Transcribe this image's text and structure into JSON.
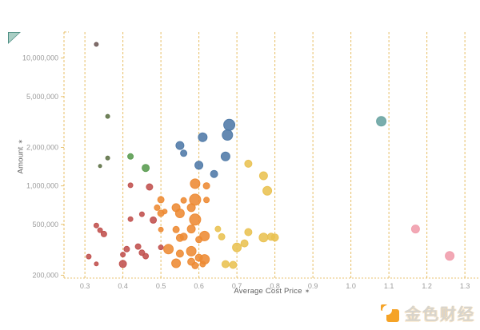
{
  "axes": {
    "x": {
      "label": "Average Cost Price",
      "icon": "✶"
    },
    "y": {
      "label": "Amount",
      "icon": "✶"
    }
  },
  "watermark": {
    "text": "金色财经",
    "brand_color": "#f5a326"
  },
  "colors": {
    "gridline": "#e3b54e",
    "tick_text": "#9b9b9b",
    "corner_marker": "#a9cec4"
  },
  "chart_data": {
    "type": "scatter",
    "title": "",
    "xlabel": "Average Cost Price",
    "ylabel": "Amount",
    "y_scale": "log",
    "grid": "vertical-dashed",
    "legend": "none",
    "xlim": [
      0.245,
      1.325
    ],
    "ylim": [
      190000,
      16000000
    ],
    "x_ticks": [
      "0.3",
      "0.4",
      "0.5",
      "0.6",
      "0.7",
      "0.8",
      "0.9",
      "1.0",
      "1.1",
      "1.2",
      "1.3"
    ],
    "y_ticks": [
      {
        "v": 10000000,
        "label": "10,000,000"
      },
      {
        "v": 5000000,
        "label": "5,000,000"
      },
      {
        "v": 2000000,
        "label": "2,000,000"
      },
      {
        "v": 1000000,
        "label": "1,000,000"
      },
      {
        "v": 500000,
        "label": "500,000"
      },
      {
        "v": 200000,
        "label": "200,000"
      }
    ],
    "point_format": [
      "avg_cost_price",
      "amount",
      "radius_px"
    ],
    "series": [
      {
        "name": "dark-maroon",
        "color": "#6e5a57",
        "points": [
          [
            0.33,
            12800000,
            2.5
          ]
        ]
      },
      {
        "name": "dark-olive",
        "color": "#5d7145",
        "points": [
          [
            0.36,
            3500000,
            2.5
          ],
          [
            0.36,
            1650000,
            2.5
          ],
          [
            0.34,
            1430000,
            2
          ]
        ]
      },
      {
        "name": "green",
        "color": "#589b4f",
        "points": [
          [
            0.42,
            1700000,
            3.5
          ],
          [
            0.46,
            1380000,
            4.5
          ]
        ]
      },
      {
        "name": "red",
        "color": "#c0504d",
        "points": [
          [
            0.42,
            1010000,
            3
          ],
          [
            0.47,
            980000,
            4
          ],
          [
            0.45,
            600000,
            3
          ],
          [
            0.42,
            550000,
            3
          ],
          [
            0.48,
            540000,
            4
          ],
          [
            0.33,
            490000,
            3
          ],
          [
            0.34,
            450000,
            3
          ],
          [
            0.35,
            420000,
            3.5
          ],
          [
            0.31,
            280000,
            3
          ],
          [
            0.33,
            245000,
            2.5
          ],
          [
            0.41,
            320000,
            3.5
          ],
          [
            0.4,
            290000,
            3
          ],
          [
            0.4,
            245000,
            4.5
          ],
          [
            0.44,
            335000,
            3.5
          ],
          [
            0.45,
            300000,
            3.5
          ],
          [
            0.46,
            282000,
            3.5
          ],
          [
            0.5,
            330000,
            3
          ]
        ]
      },
      {
        "name": "orange",
        "color": "#ed8a33",
        "points": [
          [
            0.59,
            1040000,
            6
          ],
          [
            0.62,
            1000000,
            4
          ],
          [
            0.59,
            780000,
            7
          ],
          [
            0.62,
            775000,
            3.5
          ],
          [
            0.56,
            770000,
            3.5
          ],
          [
            0.54,
            675000,
            5
          ],
          [
            0.58,
            675000,
            5
          ],
          [
            0.51,
            630000,
            3
          ],
          [
            0.55,
            610000,
            5.5
          ],
          [
            0.5,
            780000,
            4
          ],
          [
            0.49,
            675000,
            3.5
          ],
          [
            0.5,
            610000,
            4
          ],
          [
            0.59,
            545000,
            7
          ],
          [
            0.58,
            460000,
            5
          ],
          [
            0.54,
            455000,
            4
          ],
          [
            0.56,
            400000,
            4.5
          ],
          [
            0.6,
            380000,
            4
          ],
          [
            0.615,
            405000,
            6
          ],
          [
            0.5,
            455000,
            3
          ],
          [
            0.52,
            320000,
            6
          ],
          [
            0.55,
            295000,
            4.5
          ],
          [
            0.58,
            308000,
            6
          ],
          [
            0.6,
            274000,
            4.5
          ],
          [
            0.615,
            266000,
            6
          ],
          [
            0.58,
            255000,
            4.5
          ],
          [
            0.54,
            248000,
            5.5
          ],
          [
            0.55,
            392000,
            4.5
          ],
          [
            0.59,
            238000,
            4
          ],
          [
            0.61,
            244000,
            3.5
          ]
        ]
      },
      {
        "name": "yellow",
        "color": "#e9c151",
        "points": [
          [
            0.73,
            1490000,
            4.5
          ],
          [
            0.77,
            1200000,
            5
          ],
          [
            0.78,
            915000,
            5.5
          ],
          [
            0.65,
            460000,
            3.5
          ],
          [
            0.66,
            400000,
            4
          ],
          [
            0.73,
            435000,
            4.5
          ],
          [
            0.77,
            395000,
            5.5
          ],
          [
            0.79,
            400000,
            4.5
          ],
          [
            0.8,
            395000,
            4.5
          ],
          [
            0.72,
            355000,
            4.5
          ],
          [
            0.7,
            330000,
            5.5
          ],
          [
            0.67,
            244000,
            4.5
          ],
          [
            0.69,
            241000,
            4.5
          ]
        ]
      },
      {
        "name": "blue",
        "color": "#4e79a7",
        "points": [
          [
            0.68,
            3000000,
            7
          ],
          [
            0.675,
            2500000,
            6.5
          ],
          [
            0.61,
            2400000,
            5.5
          ],
          [
            0.55,
            2070000,
            5
          ],
          [
            0.56,
            1800000,
            4
          ],
          [
            0.67,
            1700000,
            5.5
          ],
          [
            0.6,
            1450000,
            5
          ],
          [
            0.64,
            1240000,
            4.5
          ]
        ]
      },
      {
        "name": "teal",
        "color": "#66a2a0",
        "points": [
          [
            1.08,
            3200000,
            6
          ]
        ]
      },
      {
        "name": "pink",
        "color": "#f09cab",
        "points": [
          [
            1.17,
            460000,
            5
          ],
          [
            1.26,
            283000,
            5.5
          ]
        ]
      }
    ]
  }
}
